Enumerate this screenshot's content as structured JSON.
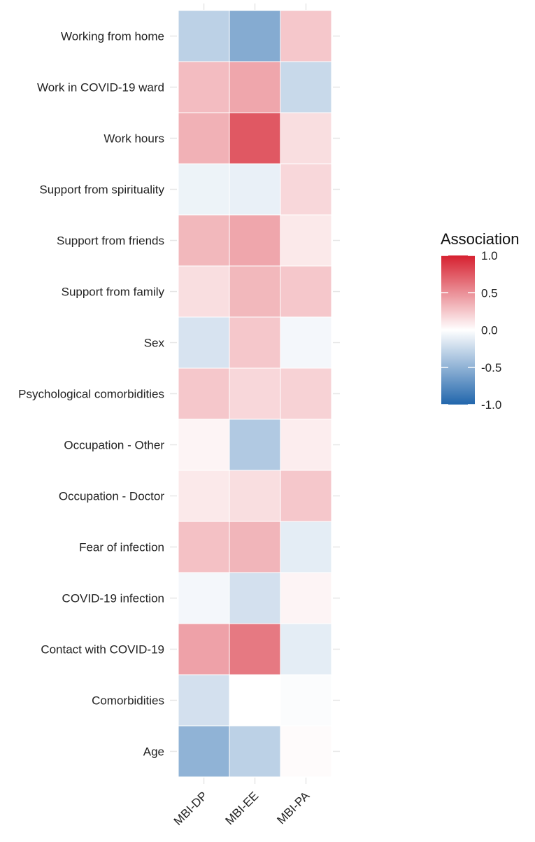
{
  "chart_data": {
    "type": "heatmap",
    "title": "",
    "xlabel": "",
    "ylabel": "",
    "columns": [
      "MBI-DP",
      "MBI-EE",
      "MBI-PA"
    ],
    "rows": [
      "Working from home",
      "Work in COVID-19 ward",
      "Work hours",
      "Support from spirituality",
      "Support from friends",
      "Support from family",
      "Sex",
      "Psychological comorbidities",
      "Occupation - Other",
      "Occupation - Doctor",
      "Fear of infection",
      "COVID-19 infection",
      "Contact with COVID-19",
      "Comorbidities",
      "Age"
    ],
    "values": [
      [
        -0.3,
        -0.55,
        0.25
      ],
      [
        0.3,
        0.4,
        -0.25
      ],
      [
        0.35,
        0.75,
        0.15
      ],
      [
        -0.08,
        -0.1,
        0.18
      ],
      [
        0.32,
        0.4,
        0.1
      ],
      [
        0.15,
        0.32,
        0.25
      ],
      [
        -0.18,
        0.25,
        -0.05
      ],
      [
        0.25,
        0.18,
        0.2
      ],
      [
        0.05,
        -0.35,
        0.08
      ],
      [
        0.1,
        0.15,
        0.25
      ],
      [
        0.28,
        0.33,
        -0.12
      ],
      [
        -0.05,
        -0.2,
        0.05
      ],
      [
        0.42,
        0.6,
        -0.12
      ],
      [
        -0.2,
        0.0,
        -0.02
      ],
      [
        -0.5,
        -0.3,
        0.02
      ]
    ],
    "legend": {
      "title": "Association",
      "range": [
        -1.0,
        1.0
      ],
      "ticks": [
        "1.0",
        "0.5",
        "0.0",
        "-0.5",
        "-1.0"
      ],
      "colors": {
        "low": "#2166ac",
        "mid": "#ffffff",
        "high": "#d6202f"
      }
    }
  }
}
